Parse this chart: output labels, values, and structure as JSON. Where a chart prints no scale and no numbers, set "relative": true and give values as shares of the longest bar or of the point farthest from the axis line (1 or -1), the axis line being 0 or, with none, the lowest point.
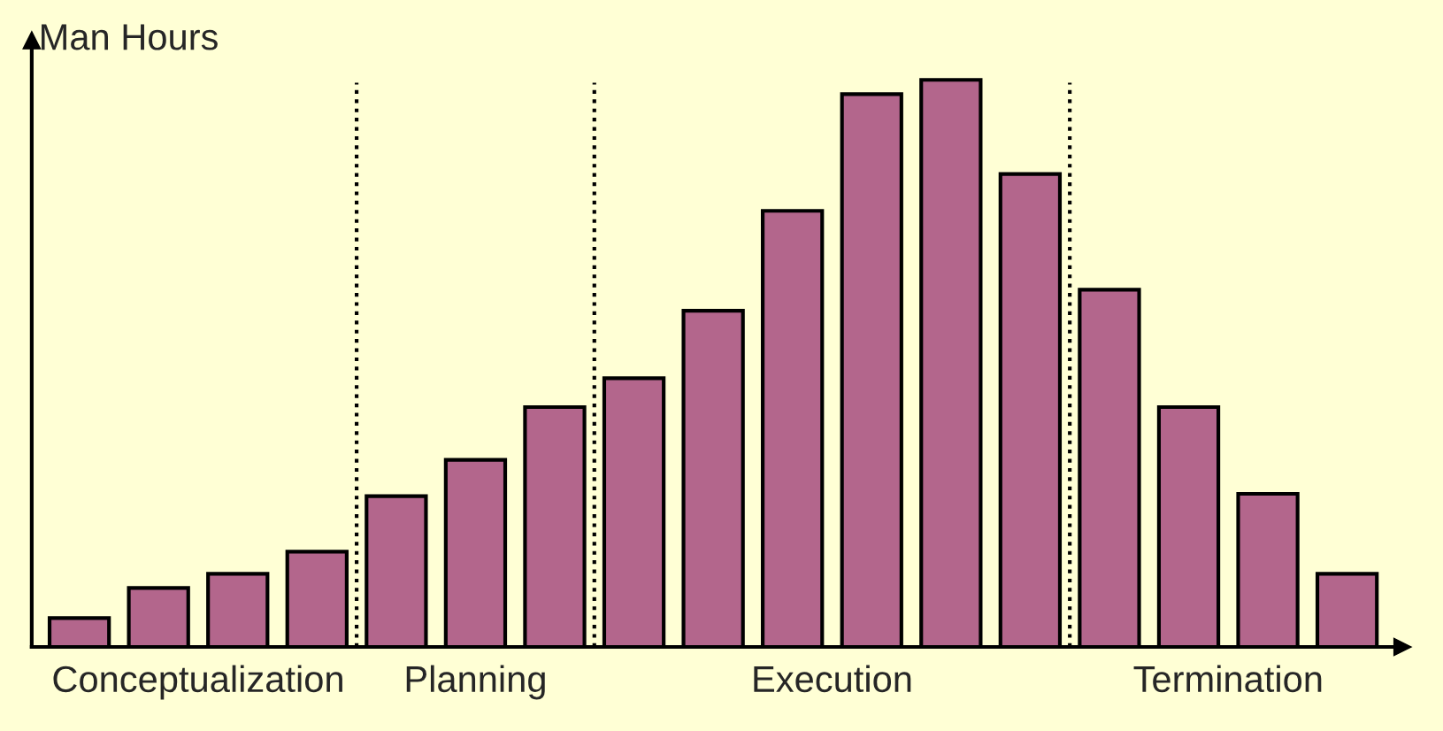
{
  "chart_data": {
    "type": "bar",
    "relative": true,
    "ylabel": "Man Hours",
    "categories": [
      null,
      null,
      null,
      null,
      null,
      null,
      null,
      null,
      null,
      null,
      null,
      null,
      null,
      null,
      null,
      null,
      null
    ],
    "values": [
      0.051,
      0.104,
      0.129,
      0.168,
      0.266,
      0.33,
      0.423,
      0.474,
      0.593,
      0.769,
      0.975,
      1,
      0.834,
      0.63,
      0.423,
      0.27,
      0.129
    ],
    "color": "#b3668c",
    "annotations": [
      "Conceptualization",
      "Planning",
      "Execution",
      "Termination"
    ],
    "grid": false,
    "legend": false
  }
}
